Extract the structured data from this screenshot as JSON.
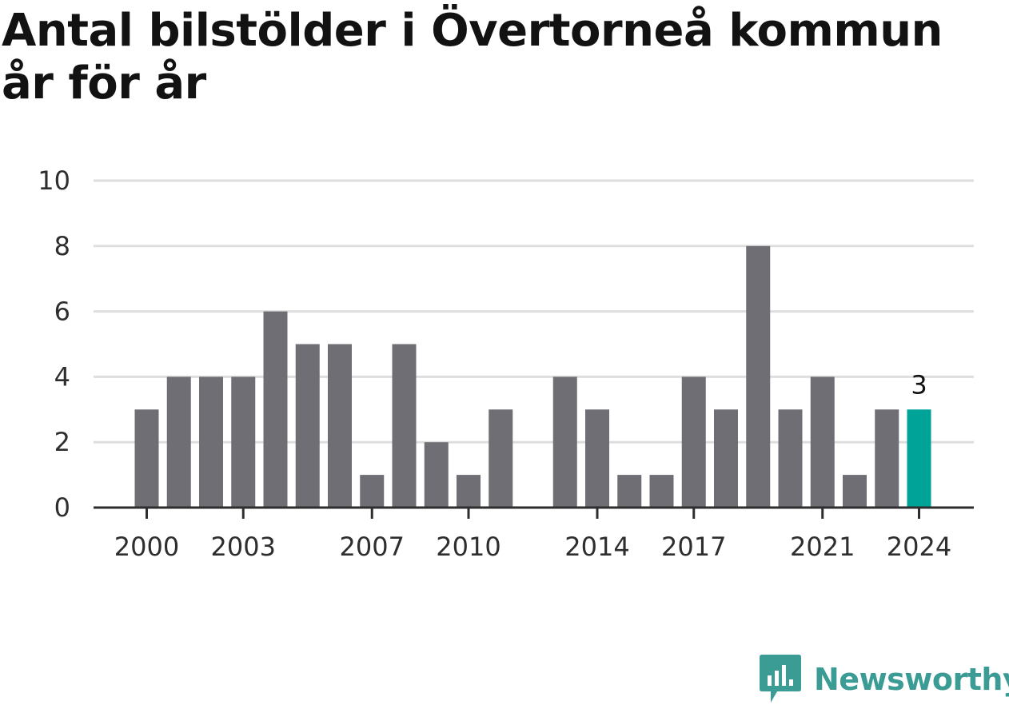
{
  "title_line1": "Antal bilstölder i Övertorneå kommun",
  "title_line2": "år för år",
  "brand": {
    "name": "Newsworthy",
    "icon": "newsworthy-logo-icon",
    "color": "#3b9c95"
  },
  "chart_data": {
    "type": "bar",
    "title": "Antal bilstölder i Övertorneå kommun år för år",
    "xlabel": "",
    "ylabel": "",
    "x": [
      2000,
      2001,
      2002,
      2003,
      2004,
      2005,
      2006,
      2007,
      2008,
      2009,
      2010,
      2011,
      2012,
      2013,
      2014,
      2015,
      2016,
      2017,
      2018,
      2019,
      2020,
      2021,
      2022,
      2023,
      2024
    ],
    "values": [
      3,
      4,
      4,
      4,
      6,
      5,
      5,
      1,
      5,
      2,
      1,
      3,
      0,
      4,
      3,
      1,
      1,
      4,
      3,
      8,
      3,
      4,
      1,
      3,
      3
    ],
    "ylim": [
      0,
      10
    ],
    "yticks": [
      0,
      2,
      4,
      6,
      8,
      10
    ],
    "xticks": [
      2000,
      2003,
      2007,
      2010,
      2014,
      2017,
      2021,
      2024
    ],
    "grid": true,
    "bar_color": "#6f6e74",
    "highlight": {
      "x": 2024,
      "color": "#00a398",
      "label": "3"
    }
  }
}
